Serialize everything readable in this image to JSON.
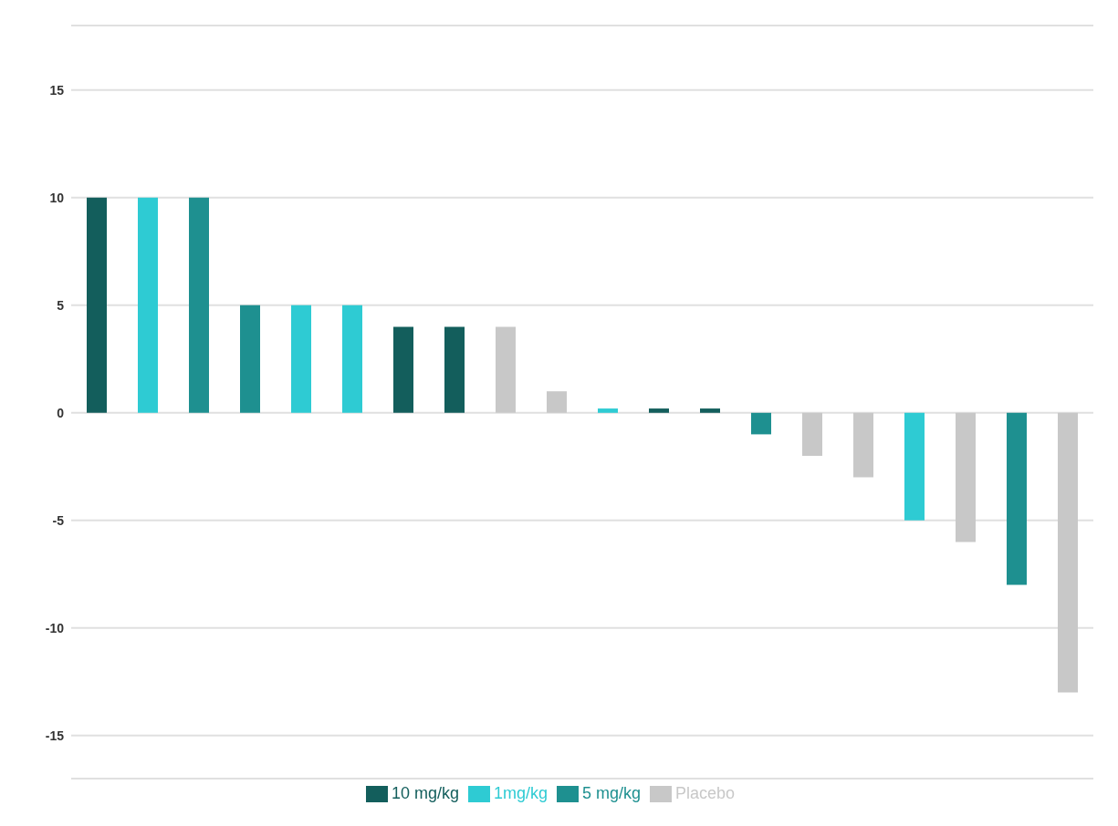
{
  "chart_data": {
    "type": "bar",
    "stacked": true,
    "categories": [
      null,
      null,
      null,
      null,
      null,
      null,
      null,
      null,
      null,
      null,
      null,
      null,
      null,
      null,
      null,
      null,
      null,
      null,
      null,
      null
    ],
    "series": [
      {
        "name": "Placebo",
        "color": "#c8c8c8",
        "values": [
          null,
          null,
          null,
          null,
          null,
          null,
          null,
          null,
          4,
          1,
          null,
          null,
          null,
          null,
          -2,
          -3,
          null,
          -6,
          null,
          -13
        ]
      },
      {
        "name": "1mg/kg",
        "color": "#2ecbd3",
        "values": [
          null,
          10,
          null,
          null,
          5,
          5,
          null,
          null,
          null,
          null,
          0.2,
          null,
          null,
          null,
          null,
          null,
          -5,
          null,
          null,
          null
        ]
      },
      {
        "name": "5 mg/kg",
        "color": "#1e9090",
        "values": [
          null,
          null,
          10,
          5,
          null,
          null,
          null,
          null,
          null,
          null,
          null,
          null,
          null,
          -1,
          null,
          null,
          null,
          null,
          -8,
          null
        ]
      },
      {
        "name": "10 mg/kg",
        "color": "#135e5c",
        "values": [
          10,
          null,
          null,
          null,
          null,
          null,
          4,
          4,
          null,
          null,
          null,
          0.2,
          0.2,
          null,
          null,
          null,
          null,
          null,
          null,
          null
        ]
      }
    ],
    "ylim": [
      -17,
      18
    ],
    "yticks": [
      -15,
      -10,
      -5,
      0,
      5,
      10,
      15
    ],
    "grid": "y",
    "legend": "bottom",
    "tick_labels": "y"
  }
}
